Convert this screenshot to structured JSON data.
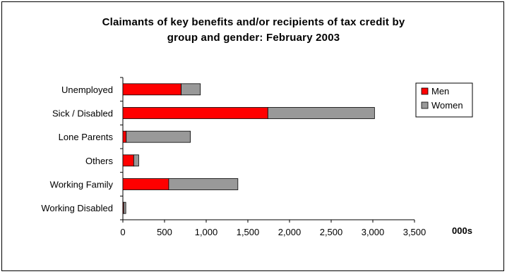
{
  "chart_data": {
    "type": "bar",
    "orientation": "horizontal",
    "stacked": true,
    "title_lines": [
      "Claimants of key benefits and/or recipients of tax credit by",
      "group and gender: February 2003"
    ],
    "categories": [
      "Unemployed",
      "Sick / Disabled",
      "Lone Parents",
      "Others",
      "Working Family",
      "Working Disabled"
    ],
    "series": [
      {
        "name": "Men",
        "color": "#ff0000",
        "values": [
          700,
          1740,
          40,
          130,
          550,
          10
        ]
      },
      {
        "name": "Women",
        "color": "#999999",
        "values": [
          230,
          1280,
          770,
          60,
          830,
          25
        ]
      }
    ],
    "x_ticks": [
      "0",
      "500",
      "1,000",
      "1,500",
      "2,000",
      "2,500",
      "3,000",
      "3,500"
    ],
    "xlim": [
      0,
      3500
    ],
    "x_unit_label": "000s",
    "legend_position": "right",
    "grid": false
  }
}
